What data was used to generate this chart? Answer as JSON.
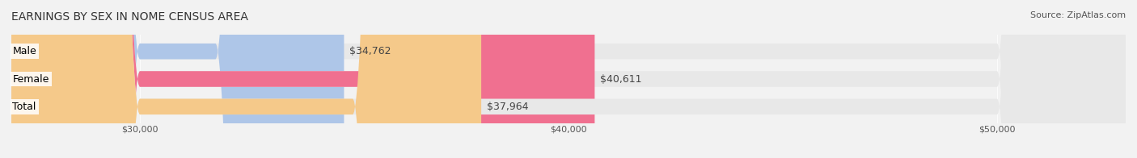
{
  "title": "EARNINGS BY SEX IN NOME CENSUS AREA",
  "source": "Source: ZipAtlas.com",
  "categories": [
    "Male",
    "Female",
    "Total"
  ],
  "values": [
    34762,
    40611,
    37964
  ],
  "bar_colors": [
    "#aec6e8",
    "#f07090",
    "#f5c98a"
  ],
  "label_colors": [
    "#aec6e8",
    "#f07090",
    "#f5c98a"
  ],
  "value_labels": [
    "$34,762",
    "$40,611",
    "$37,964"
  ],
  "xlim": [
    27000,
    53000
  ],
  "xticks": [
    30000,
    40000,
    50000
  ],
  "xtick_labels": [
    "$30,000",
    "$40,000",
    "$50,000"
  ],
  "bar_height": 0.55,
  "background_color": "#f2f2f2",
  "bar_bg_color": "#e8e8e8",
  "title_fontsize": 10,
  "source_fontsize": 8,
  "label_fontsize": 9,
  "value_fontsize": 9,
  "tick_fontsize": 8
}
